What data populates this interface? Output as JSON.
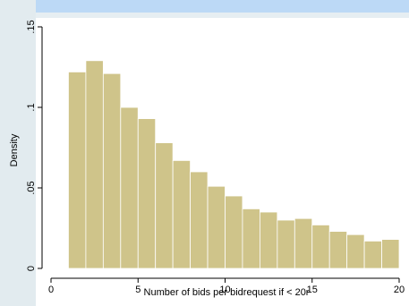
{
  "chart_data": {
    "type": "bar",
    "xlabel": "Number of bids per bidrequest if < 20r",
    "ylabel": "Density",
    "xlim": [
      0,
      20
    ],
    "ylim": [
      0,
      0.15
    ],
    "x_ticks": [
      0,
      5,
      10,
      15,
      20
    ],
    "x_tick_labels": [
      "0",
      "5",
      "10",
      "15",
      "20"
    ],
    "y_ticks": [
      0,
      0.05,
      0.1,
      0.15
    ],
    "y_tick_labels": [
      "0",
      ".05",
      ".1",
      ".15"
    ],
    "bar_color": "#cfc48a",
    "bin_width": 1,
    "bins": [
      {
        "x": 1,
        "value": 0.122
      },
      {
        "x": 2,
        "value": 0.129
      },
      {
        "x": 3,
        "value": 0.121
      },
      {
        "x": 4,
        "value": 0.1
      },
      {
        "x": 5,
        "value": 0.093
      },
      {
        "x": 6,
        "value": 0.078
      },
      {
        "x": 7,
        "value": 0.067
      },
      {
        "x": 8,
        "value": 0.06
      },
      {
        "x": 9,
        "value": 0.051
      },
      {
        "x": 10,
        "value": 0.045
      },
      {
        "x": 11,
        "value": 0.037
      },
      {
        "x": 12,
        "value": 0.035
      },
      {
        "x": 13,
        "value": 0.03
      },
      {
        "x": 14,
        "value": 0.031
      },
      {
        "x": 15,
        "value": 0.027
      },
      {
        "x": 16,
        "value": 0.023
      },
      {
        "x": 17,
        "value": 0.021
      },
      {
        "x": 18,
        "value": 0.017
      },
      {
        "x": 19,
        "value": 0.018
      }
    ]
  }
}
